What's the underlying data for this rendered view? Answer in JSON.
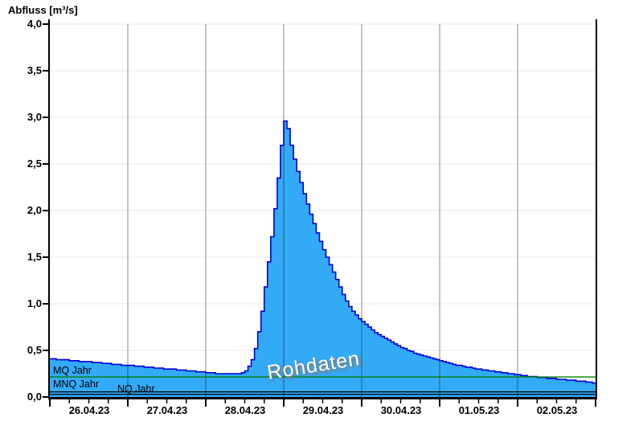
{
  "title": "Abfluss [m³/s]",
  "watermark": "Rohdaten",
  "reference_lines": {
    "mq": {
      "label": "MQ Jahr",
      "value": 0.215,
      "color": "#008000"
    },
    "mnq": {
      "label": "MNQ Jahr",
      "value": 0.055,
      "color": "#000000"
    },
    "nq": {
      "label": "NQ Jahr",
      "value": 0.028,
      "color": "#000000"
    }
  },
  "chart_data": {
    "type": "area",
    "title": "Abfluss [m³/s]",
    "ylabel": "Abfluss [m³/s]",
    "xlabel": "",
    "ylim": [
      0,
      4
    ],
    "grid": true,
    "colors": {
      "area_fill": "#33AAF6",
      "area_stroke": "#0000DD",
      "grid_h": "#E8E8E8",
      "grid_v": "#808080",
      "axis": "#000000"
    },
    "y_axis": {
      "range": [
        0,
        4
      ],
      "ticks": [
        {
          "value": 0.0,
          "label": "0,0"
        },
        {
          "value": 0.5,
          "label": "0,5"
        },
        {
          "value": 1.0,
          "label": "1,0"
        },
        {
          "value": 1.5,
          "label": "1,5"
        },
        {
          "value": 2.0,
          "label": "2,0"
        },
        {
          "value": 2.5,
          "label": "2,5"
        },
        {
          "value": 3.0,
          "label": "3,0"
        },
        {
          "value": 3.5,
          "label": "3,5"
        },
        {
          "value": 4.0,
          "label": "4,0"
        }
      ]
    },
    "x_axis": {
      "days": [
        {
          "label": "26.04.23"
        },
        {
          "label": "27.04.23"
        },
        {
          "label": "28.04.23"
        },
        {
          "label": "29.04.23"
        },
        {
          "label": "30.04.23"
        },
        {
          "label": "01.05.23"
        },
        {
          "label": "02.05.23"
        }
      ],
      "minor_ticks_hours": [
        6,
        12,
        18
      ],
      "range_days": 7
    },
    "series": [
      {
        "name": "Rohdaten",
        "unit": "m³/s",
        "start": "26.04.23 00:00",
        "step_hours": 1,
        "peak": {
          "value": 2.96,
          "time": "29.04.23 00:00"
        },
        "values": [
          0.41,
          0.41,
          0.4,
          0.4,
          0.4,
          0.4,
          0.39,
          0.39,
          0.39,
          0.38,
          0.38,
          0.38,
          0.38,
          0.37,
          0.37,
          0.37,
          0.36,
          0.36,
          0.36,
          0.35,
          0.35,
          0.35,
          0.34,
          0.34,
          0.34,
          0.34,
          0.33,
          0.33,
          0.33,
          0.32,
          0.32,
          0.32,
          0.31,
          0.31,
          0.31,
          0.3,
          0.3,
          0.3,
          0.3,
          0.29,
          0.29,
          0.29,
          0.28,
          0.28,
          0.28,
          0.27,
          0.27,
          0.27,
          0.26,
          0.26,
          0.26,
          0.25,
          0.25,
          0.25,
          0.25,
          0.25,
          0.25,
          0.25,
          0.25,
          0.26,
          0.28,
          0.33,
          0.4,
          0.52,
          0.7,
          0.92,
          1.18,
          1.45,
          1.72,
          2.02,
          2.35,
          2.7,
          2.96,
          2.88,
          2.7,
          2.55,
          2.42,
          2.3,
          2.18,
          2.07,
          1.96,
          1.86,
          1.76,
          1.67,
          1.58,
          1.5,
          1.42,
          1.34,
          1.26,
          1.18,
          1.1,
          1.03,
          0.97,
          0.92,
          0.88,
          0.84,
          0.81,
          0.78,
          0.75,
          0.72,
          0.69,
          0.67,
          0.65,
          0.63,
          0.61,
          0.59,
          0.57,
          0.55,
          0.53,
          0.52,
          0.5,
          0.49,
          0.47,
          0.46,
          0.45,
          0.44,
          0.43,
          0.42,
          0.41,
          0.4,
          0.39,
          0.38,
          0.37,
          0.36,
          0.35,
          0.34,
          0.34,
          0.33,
          0.32,
          0.32,
          0.31,
          0.3,
          0.3,
          0.29,
          0.29,
          0.28,
          0.28,
          0.27,
          0.27,
          0.26,
          0.26,
          0.25,
          0.25,
          0.24,
          0.24,
          0.23,
          0.23,
          0.22,
          0.22,
          0.22,
          0.21,
          0.21,
          0.21,
          0.2,
          0.2,
          0.2,
          0.19,
          0.19,
          0.19,
          0.18,
          0.18,
          0.18,
          0.17,
          0.17,
          0.17,
          0.16,
          0.16,
          0.15,
          0.15
        ]
      }
    ]
  }
}
